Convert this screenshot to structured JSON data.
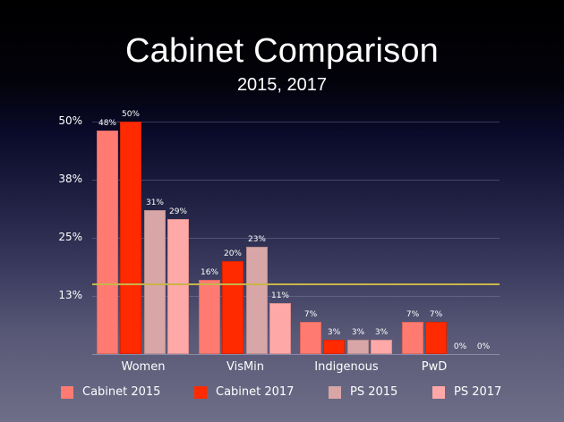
{
  "header": {
    "title": "Cabinet Comparison",
    "subtitle": "2015, 2017"
  },
  "colors": {
    "cabinet_2015": "#ff7b72",
    "cabinet_2017": "#ff2a00",
    "ps_2015": "#d8a6a6",
    "ps_2017": "#ffa8a8",
    "reference_line": "#c8b44a"
  },
  "chart_data": {
    "type": "bar",
    "title": "Cabinet Comparison",
    "subtitle": "2015, 2017",
    "xlabel": "",
    "ylabel": "",
    "categories": [
      "Women",
      "VisMin",
      "Indigenous",
      "PwD"
    ],
    "series": [
      {
        "name": "Cabinet 2015",
        "values": [
          48,
          16,
          7,
          7
        ],
        "labels": [
          "48%",
          "16%",
          "7%",
          "7%"
        ]
      },
      {
        "name": "Cabinet 2017",
        "values": [
          50,
          20,
          3,
          7
        ],
        "labels": [
          "50%",
          "20%",
          "3%",
          "7%"
        ]
      },
      {
        "name": "PS 2015",
        "values": [
          31,
          23,
          3,
          0
        ],
        "labels": [
          "31%",
          "23%",
          "3%",
          "0%"
        ]
      },
      {
        "name": "PS 2017",
        "values": [
          29,
          11,
          3,
          0
        ],
        "labels": [
          "29%",
          "11%",
          "3%",
          "0%"
        ]
      }
    ],
    "yticks": [
      "13%",
      "25%",
      "38%",
      "50%"
    ],
    "ylim": [
      0,
      50
    ],
    "grid": true,
    "legend_position": "bottom",
    "reference_line": {
      "value": 15,
      "color": "#c8b44a"
    }
  }
}
